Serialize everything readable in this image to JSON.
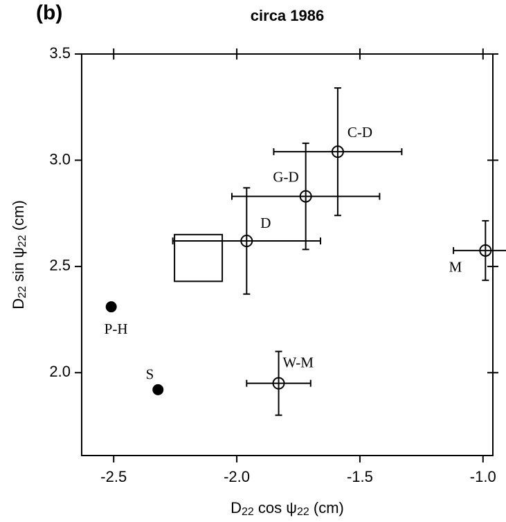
{
  "chart_data": {
    "type": "scatter",
    "panel_label": "(b)",
    "title": "circa 1986",
    "xlabel": [
      "D",
      "22",
      " cos ψ",
      "22",
      "  (cm)"
    ],
    "ylabel": [
      "D",
      "22",
      " sin ψ",
      "22",
      "  (cm)"
    ],
    "xlim": [
      -2.63,
      -0.96
    ],
    "ylim": [
      1.61,
      3.5
    ],
    "xticks": [
      -2.5,
      {
        "value": -2.0,
        "label": "-2.0"
      },
      -1.5,
      {
        "value": -1.0,
        "label": "-1.0"
      }
    ],
    "yticks": [
      {
        "value": 2.0,
        "label": "2.0"
      },
      2.5,
      {
        "value": 3.0,
        "label": "3.0"
      },
      3.5
    ],
    "points": [
      {
        "label": "C-D",
        "x": -1.59,
        "y": 3.04,
        "xerr": 0.26,
        "yerr": 0.3,
        "marker": "open"
      },
      {
        "label": "G-D",
        "x": -1.72,
        "y": 2.83,
        "xerr": 0.3,
        "yerr": 0.25,
        "marker": "open"
      },
      {
        "label": "D",
        "x": -1.96,
        "y": 2.62,
        "xerr": 0.3,
        "yerr": 0.25,
        "marker": "open"
      },
      {
        "label": "W-M",
        "x": -1.83,
        "y": 1.95,
        "xerr": 0.13,
        "yerr": 0.15,
        "marker": "open"
      },
      {
        "label": "M",
        "x": -0.99,
        "y": 2.575,
        "xerr": 0.13,
        "yerr": 0.14,
        "marker": "open"
      },
      {
        "label": "P-H",
        "x": -2.51,
        "y": 2.31,
        "marker": "filled"
      },
      {
        "label": "S",
        "x": -2.32,
        "y": 1.92,
        "marker": "filled"
      }
    ],
    "region": {
      "x": [
        -2.253,
        -2.059
      ],
      "y": [
        2.43,
        2.65
      ]
    }
  }
}
